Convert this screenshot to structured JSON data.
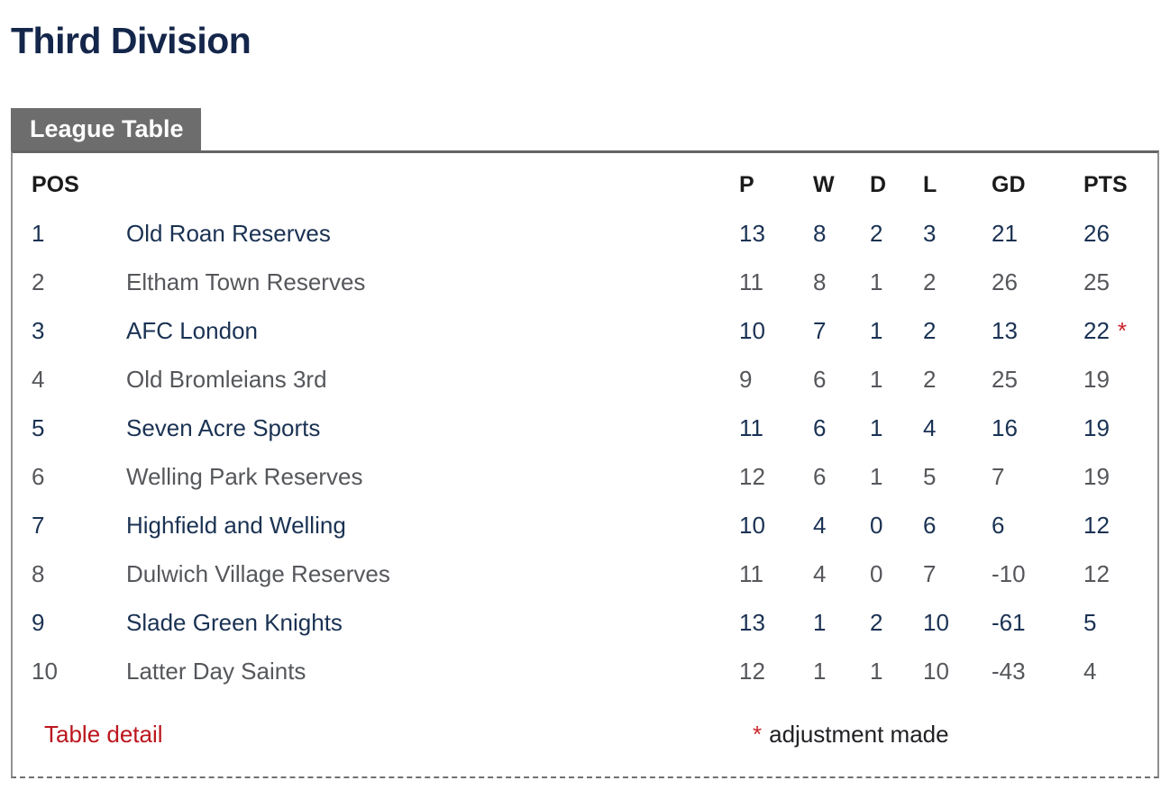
{
  "page": {
    "title": "Third Division"
  },
  "panel": {
    "tab_label": "League Table",
    "columns": {
      "pos": "POS",
      "team": "",
      "p": "P",
      "w": "W",
      "d": "D",
      "l": "L",
      "gd": "GD",
      "pts": "PTS"
    },
    "rows": [
      {
        "pos": "1",
        "team": "Old Roan Reserves",
        "p": "13",
        "w": "8",
        "d": "2",
        "l": "3",
        "gd": "21",
        "pts": "26",
        "note": ""
      },
      {
        "pos": "2",
        "team": "Eltham Town Reserves",
        "p": "11",
        "w": "8",
        "d": "1",
        "l": "2",
        "gd": "26",
        "pts": "25",
        "note": ""
      },
      {
        "pos": "3",
        "team": "AFC London",
        "p": "10",
        "w": "7",
        "d": "1",
        "l": "2",
        "gd": "13",
        "pts": "22",
        "note": "*"
      },
      {
        "pos": "4",
        "team": "Old Bromleians 3rd",
        "p": "9",
        "w": "6",
        "d": "1",
        "l": "2",
        "gd": "25",
        "pts": "19",
        "note": ""
      },
      {
        "pos": "5",
        "team": "Seven Acre Sports",
        "p": "11",
        "w": "6",
        "d": "1",
        "l": "4",
        "gd": "16",
        "pts": "19",
        "note": ""
      },
      {
        "pos": "6",
        "team": "Welling Park Reserves",
        "p": "12",
        "w": "6",
        "d": "1",
        "l": "5",
        "gd": "7",
        "pts": "19",
        "note": ""
      },
      {
        "pos": "7",
        "team": "Highfield and Welling",
        "p": "10",
        "w": "4",
        "d": "0",
        "l": "6",
        "gd": "6",
        "pts": "12",
        "note": ""
      },
      {
        "pos": "8",
        "team": "Dulwich Village Reserves",
        "p": "11",
        "w": "4",
        "d": "0",
        "l": "7",
        "gd": "-10",
        "pts": "12",
        "note": ""
      },
      {
        "pos": "9",
        "team": "Slade Green Knights",
        "p": "13",
        "w": "1",
        "d": "2",
        "l": "10",
        "gd": "-61",
        "pts": "5",
        "note": ""
      },
      {
        "pos": "10",
        "team": "Latter Day Saints",
        "p": "12",
        "w": "1",
        "d": "1",
        "l": "10",
        "gd": "-43",
        "pts": "4",
        "note": ""
      }
    ],
    "footer": {
      "link": "Table detail",
      "note_symbol": "*",
      "note_text": "adjustment made"
    }
  },
  "colors": {
    "title_navy": "#14264a",
    "row_navy": "#1a3253",
    "row_gray": "#55575b",
    "accent_red": "#bb161d",
    "tab_gray": "#6d6d6d"
  }
}
